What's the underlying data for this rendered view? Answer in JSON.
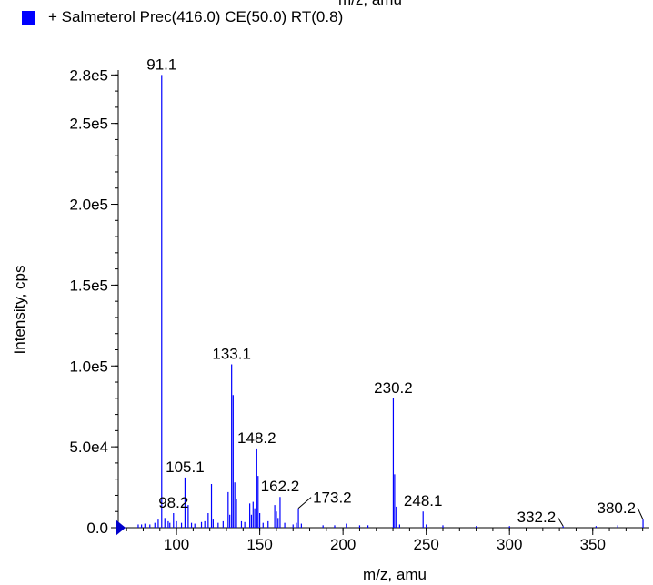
{
  "chart_data": {
    "type": "bar",
    "title_fragment": "m/z, amu",
    "legend": [
      {
        "name": "+ Salmeterol Prec(416.0) CE(50.0) RT(0.8)",
        "color": "#0000ff"
      }
    ],
    "xlabel": "m/z, amu",
    "ylabel": "Intensity, cps",
    "xlim": [
      65,
      384
    ],
    "ylim": [
      0,
      283000
    ],
    "x_ticks": [
      100,
      150,
      200,
      250,
      300,
      350
    ],
    "x_tick_labels": [
      "100",
      "150",
      "200",
      "250",
      "300",
      "350"
    ],
    "y_ticks": [
      0,
      50000,
      100000,
      150000,
      200000,
      250000,
      280000
    ],
    "y_tick_labels": [
      "0.0",
      "5.0e4",
      "1.0e5",
      "1.5e5",
      "2.0e5",
      "2.5e5",
      "2.8e5"
    ],
    "series": [
      {
        "name": "+ Salmeterol Prec(416.0) CE(50.0) RT(0.8)",
        "color": "#0000ff",
        "x": [
          77,
          79,
          81,
          84,
          87,
          89,
          91.1,
          93,
          95,
          96,
          98.2,
          100,
          103,
          105.1,
          107,
          109,
          111,
          115,
          117,
          119,
          121,
          122,
          125,
          128,
          131,
          132,
          133.1,
          134,
          135,
          136,
          139,
          141,
          144,
          145,
          146,
          147,
          148.2,
          149,
          150,
          152,
          155,
          159,
          160,
          161,
          162.2,
          165,
          170,
          172,
          173.2,
          175,
          188,
          195,
          202,
          210,
          215,
          230.2,
          231,
          232,
          234,
          248.1,
          250,
          260,
          280,
          300,
          332.2,
          352,
          365,
          380.2
        ],
        "values": [
          2000,
          2000,
          2500,
          2000,
          3000,
          5000,
          280000,
          6000,
          4000,
          3000,
          9000,
          4000,
          3000,
          31000,
          14000,
          3000,
          2500,
          3500,
          4000,
          9000,
          27000,
          5000,
          3000,
          4000,
          22000,
          8000,
          101000,
          82000,
          28000,
          18000,
          4000,
          3500,
          15000,
          8000,
          16000,
          12000,
          49000,
          32000,
          9000,
          3000,
          4000,
          14000,
          10000,
          6000,
          19000,
          3000,
          2000,
          3000,
          12000,
          2500,
          1500,
          1500,
          2500,
          1500,
          1500,
          80000,
          33000,
          13000,
          2000,
          10000,
          2000,
          1500,
          1000,
          1000,
          1000,
          1000,
          1500,
          5000
        ]
      }
    ],
    "peak_labels": [
      {
        "x": 91.1,
        "y": 280000,
        "text": "91.1",
        "leader": false
      },
      {
        "x": 133.1,
        "y": 101000,
        "text": "133.1",
        "leader": false
      },
      {
        "x": 230.2,
        "y": 80000,
        "text": "230.2",
        "leader": false
      },
      {
        "x": 148.2,
        "y": 49000,
        "text": "148.2",
        "leader": false
      },
      {
        "x": 105.1,
        "y": 31000,
        "text": "105.1",
        "leader": false
      },
      {
        "x": 162.2,
        "y": 19000,
        "text": "162.2",
        "leader": false
      },
      {
        "x": 173.2,
        "y": 12000,
        "text": "173.2",
        "leader": true
      },
      {
        "x": 248.1,
        "y": 10000,
        "text": "248.1",
        "leader": false
      },
      {
        "x": 98.2,
        "y": 9000,
        "text": "98.2",
        "leader": false
      },
      {
        "x": 332.2,
        "y": 1000,
        "text": "332.2",
        "leader": true
      },
      {
        "x": 380.2,
        "y": 5000,
        "text": "380.2",
        "leader": true
      }
    ],
    "grid": false,
    "legend_position": "top-left"
  }
}
